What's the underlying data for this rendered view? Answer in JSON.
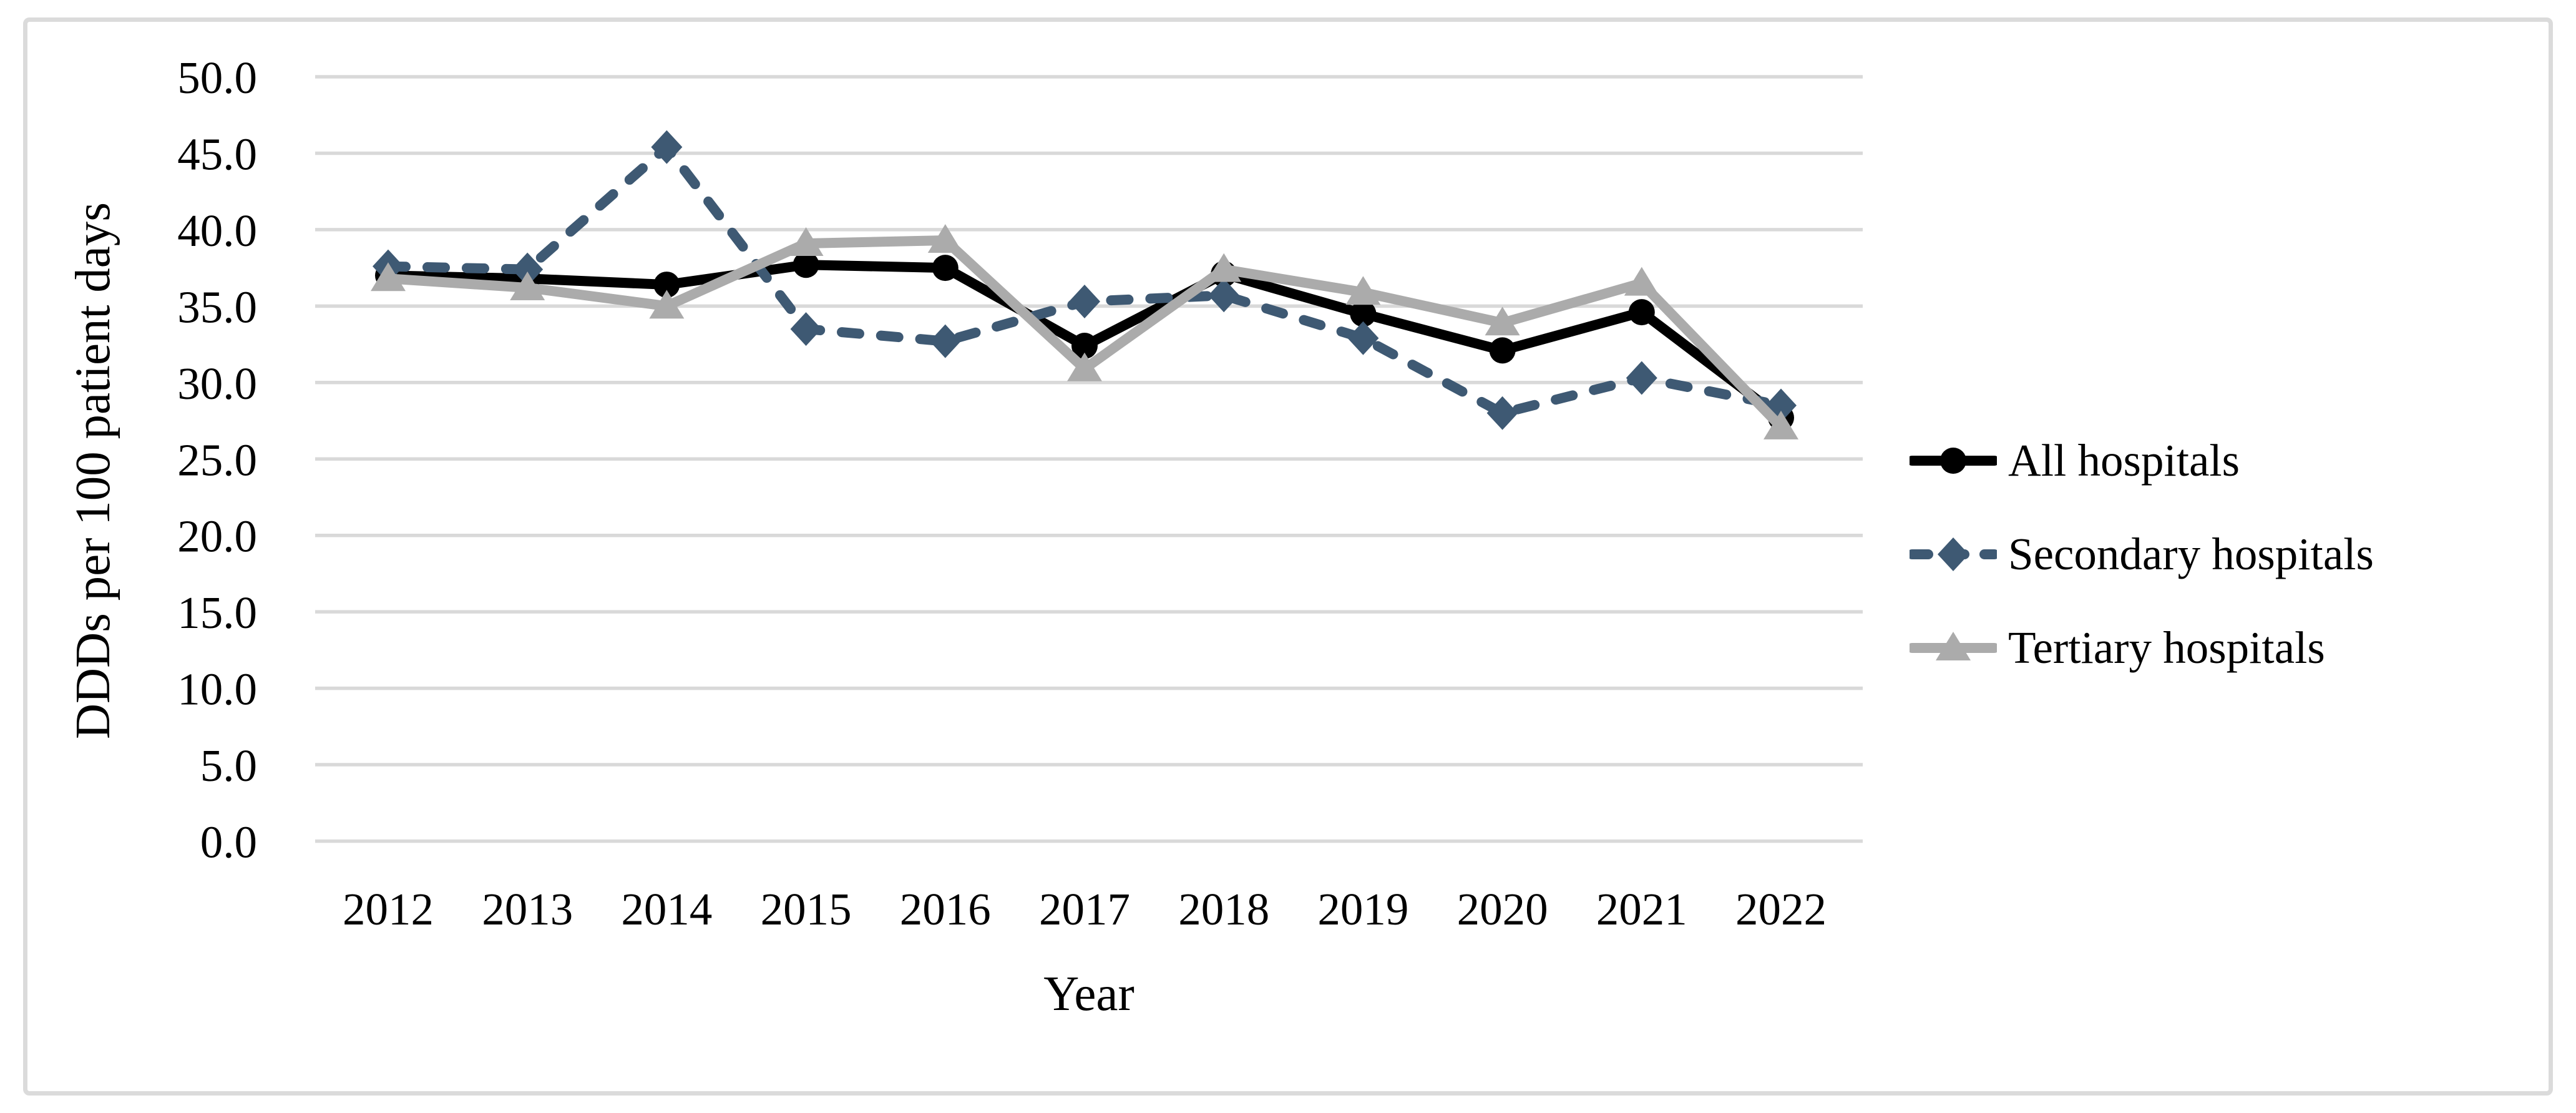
{
  "figure": {
    "background_color": "#ffffff",
    "border_color": "#dbdbdb"
  },
  "chart_data": {
    "type": "line",
    "title": "",
    "xlabel": "Year",
    "ylabel": "DDDs per 100 patient days",
    "categories": [
      "2012",
      "2013",
      "2014",
      "2015",
      "2016",
      "2017",
      "2018",
      "2019",
      "2020",
      "2021",
      "2022"
    ],
    "ylim": [
      0,
      50
    ],
    "ytick_step": 5,
    "ytick_labels": [
      "0.0",
      "5.0",
      "10.0",
      "15.0",
      "20.0",
      "25.0",
      "30.0",
      "35.0",
      "40.0",
      "45.0",
      "50.0"
    ],
    "grid": "horizontal",
    "gridline_color": "#d9d9d9",
    "legend_position": "right",
    "text_color": "#000000",
    "series": [
      {
        "name": "All hospitals",
        "color": "#000000",
        "marker": "circle",
        "line_style": "solid",
        "values": [
          37.0,
          36.8,
          36.4,
          37.7,
          37.5,
          32.4,
          37.1,
          34.5,
          32.1,
          34.6,
          27.7
        ]
      },
      {
        "name": "Secondary hospitals",
        "color": "#3e5973",
        "marker": "diamond",
        "line_style": "dashed",
        "values": [
          37.6,
          37.4,
          45.4,
          33.5,
          32.7,
          35.3,
          35.7,
          32.9,
          28.0,
          30.3,
          28.5
        ]
      },
      {
        "name": "Tertiary hospitals",
        "color": "#ababab",
        "marker": "triangle",
        "line_style": "solid",
        "values": [
          36.8,
          36.2,
          35.0,
          39.1,
          39.3,
          30.9,
          37.4,
          35.9,
          33.9,
          36.5,
          27.1
        ]
      }
    ]
  }
}
